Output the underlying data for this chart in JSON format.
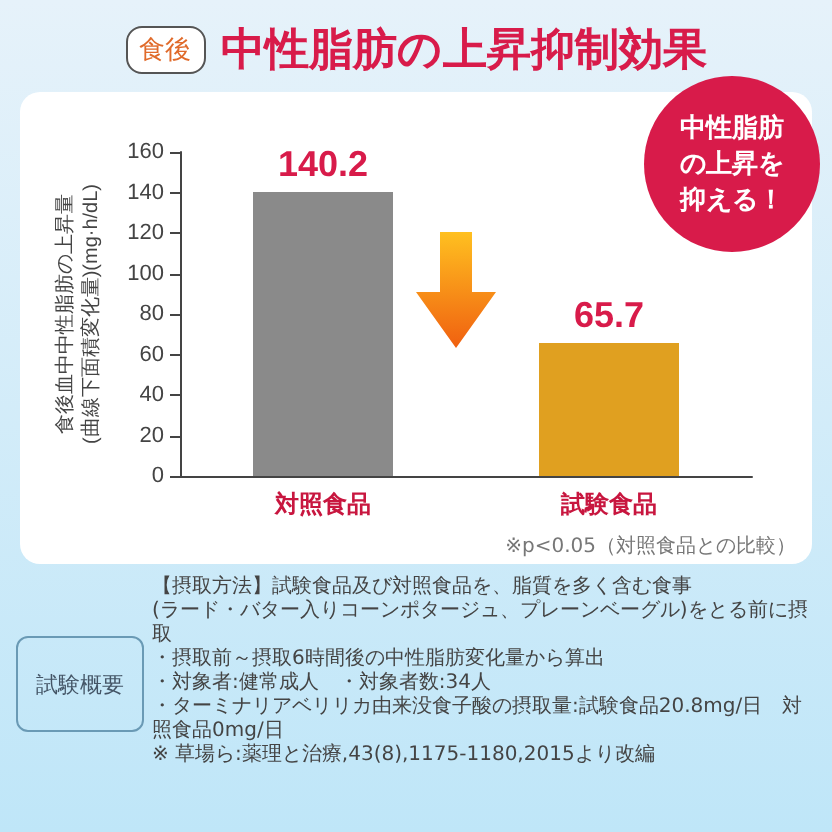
{
  "chart_data": {
    "type": "bar",
    "subtitle": "食後",
    "title": "中性脂肪の上昇抑制効果",
    "ylabel": "食後血中中性脂肪の上昇量\n(曲線下面積変化量)(mg·h/dL)",
    "categories": [
      "対照食品",
      "試験食品"
    ],
    "values": [
      140.2,
      65.7
    ],
    "colors": [
      "#8a8a8a",
      "#e0a020"
    ],
    "ylim": [
      0,
      160
    ],
    "yticks": [
      0,
      20,
      40,
      60,
      80,
      100,
      120,
      140,
      160
    ],
    "data_labels": true,
    "grid": false,
    "annotations": [
      "中性脂肪の上昇を抑える！",
      "※p<0.05（対照食品との比較）",
      "試験概要",
      "【摂取方法】試験食品及び対照食品を、脂質を多く含む食事",
      "(ラード・バター入りコーンポタージュ、プレーンベーグル)をとる前に摂取",
      "・摂取前～摂取6時間後の中性脂肪変化量から算出",
      "・対象者:健常成人　・対象者数:34人",
      "・ターミナリアベリリカ由来没食子酸の摂取量:試験食品20.8mg/日　対照食品0mg/日",
      "※ 草場ら:薬理と治療,43(8),1175-1180,2015より改編"
    ]
  }
}
